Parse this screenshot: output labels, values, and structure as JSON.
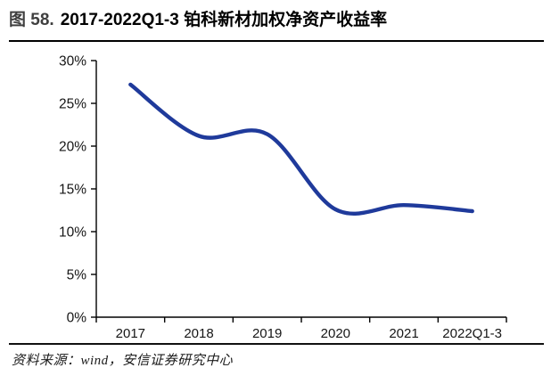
{
  "header": {
    "figure_label": "图 58.",
    "title": "2017-2022Q1-3 铂科新材加权净资产收益率"
  },
  "chart_data": {
    "type": "line",
    "title": "2017-2022Q1-3 铂科新材加权净资产收益率",
    "categories": [
      "2017",
      "2018",
      "2019",
      "2020",
      "2021",
      "2022Q1-3"
    ],
    "values": [
      27.2,
      21.2,
      21.4,
      12.6,
      13.1,
      12.4
    ],
    "unit": "%",
    "ylim": [
      0,
      30
    ],
    "ytick_step": 5,
    "yticks": [
      "0%",
      "5%",
      "10%",
      "15%",
      "20%",
      "25%",
      "30%"
    ],
    "xlabel": "",
    "ylabel": "",
    "grid": false,
    "legend": "none",
    "smooth": true,
    "line_color": "#1f3a9b",
    "axis_color": "#000000"
  },
  "footer": {
    "source": "资料来源：wind，安信证券研究中心"
  }
}
